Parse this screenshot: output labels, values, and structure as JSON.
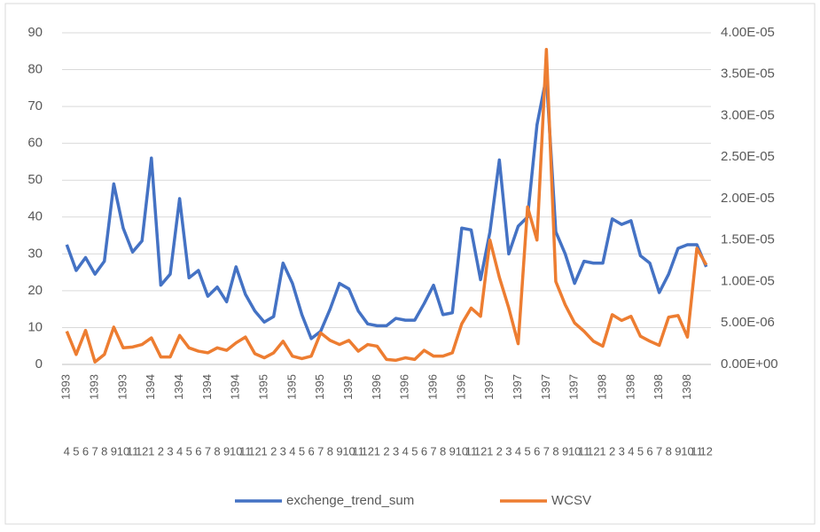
{
  "chart_data": {
    "type": "line",
    "categories": [
      "4",
      "5",
      "6",
      "7",
      "8",
      "9",
      "10",
      "11",
      "12",
      "1",
      "2",
      "3",
      "4",
      "5",
      "6",
      "7",
      "8",
      "9",
      "10",
      "11",
      "12",
      "1",
      "2",
      "3",
      "4",
      "5",
      "6",
      "7",
      "8",
      "9",
      "10",
      "11",
      "12",
      "1",
      "2",
      "3",
      "4",
      "5",
      "6",
      "7",
      "8",
      "9",
      "10",
      "11",
      "12",
      "1",
      "2",
      "3",
      "4",
      "5",
      "6",
      "7",
      "8",
      "9",
      "10",
      "11",
      "12",
      "1",
      "2",
      "3",
      "4",
      "5",
      "6",
      "7",
      "8",
      "9",
      "10",
      "11",
      "12"
    ],
    "category_groups": [
      "1393",
      null,
      null,
      "1393",
      null,
      null,
      "1393",
      null,
      null,
      "1394",
      null,
      null,
      "1394",
      null,
      null,
      "1394",
      null,
      null,
      "1394",
      null,
      null,
      "1395",
      null,
      null,
      "1395",
      null,
      null,
      "1395",
      null,
      null,
      "1395",
      null,
      null,
      "1396",
      null,
      null,
      "1396",
      null,
      null,
      "1396",
      null,
      null,
      "1396",
      null,
      null,
      "1397",
      null,
      null,
      "1397",
      null,
      null,
      "1397",
      null,
      null,
      "1397",
      null,
      null,
      "1398",
      null,
      null,
      "1398",
      null,
      null,
      "1398",
      null,
      null,
      "1398",
      null,
      null
    ],
    "series": [
      {
        "name": "exchenge_trend_sum",
        "color": "#4472c4",
        "values": [
          32.5,
          25.5,
          29,
          24.5,
          28,
          49,
          37,
          30.5,
          33.5,
          56,
          21.5,
          24.5,
          45,
          23.5,
          25.5,
          18.5,
          21,
          17,
          26.5,
          19,
          14.5,
          11.5,
          13,
          27.5,
          22,
          13.5,
          7,
          9,
          15,
          22,
          20.5,
          14.5,
          11,
          10.5,
          10.5,
          12.5,
          12,
          12,
          16.5,
          21.5,
          13.5,
          14,
          37,
          36.5,
          23,
          36,
          55.5,
          30,
          37.5,
          40,
          65,
          78,
          36,
          30,
          22,
          28,
          27.5,
          27.5,
          39.5,
          38,
          39,
          29.5,
          27.5,
          19.5,
          24.5,
          31.5,
          32.5,
          32.5,
          26.5
        ]
      },
      {
        "name": "WCSV",
        "color": "#ed7d31",
        "axis": "y2",
        "values": [
          4e-06,
          1.2e-06,
          4.1e-06,
          3e-07,
          1.2e-06,
          4.5e-06,
          2e-06,
          2.1e-06,
          2.4e-06,
          3.2e-06,
          9e-07,
          9e-07,
          3.5e-06,
          2e-06,
          1.6e-06,
          1.4e-06,
          2e-06,
          1.7e-06,
          2.6e-06,
          3.3e-06,
          1.3e-06,
          8e-07,
          1.4e-06,
          2.8e-06,
          1e-06,
          7e-07,
          1e-06,
          3.8e-06,
          2.9e-06,
          2.4e-06,
          2.9e-06,
          1.6e-06,
          2.4e-06,
          2.2e-06,
          6e-07,
          5e-07,
          8e-07,
          6e-07,
          1.7e-06,
          1e-06,
          1e-06,
          1.4e-06,
          4.9e-06,
          6.8e-06,
          5.8e-06,
          1.5e-05,
          1.05e-05,
          6.8e-06,
          2.5e-06,
          1.9e-05,
          1.5e-05,
          3.8e-05,
          1e-05,
          7.2e-06,
          5e-06,
          4e-06,
          2.8e-06,
          2.2e-06,
          6e-06,
          5.3e-06,
          5.8e-06,
          3.4e-06,
          2.8e-06,
          2.3e-06,
          5.7e-06,
          5.9e-06,
          3.3e-06,
          1.4e-05,
          1.2e-05
        ]
      }
    ],
    "ylim": [
      0,
      90
    ],
    "yticks": [
      0,
      10,
      20,
      30,
      40,
      50,
      60,
      70,
      80,
      90
    ],
    "y2lim": [
      0,
      4e-05
    ],
    "y2ticks": [
      {
        "value": 0,
        "label": "0.00E+00"
      },
      {
        "value": 5e-06,
        "label": "5.00E-06"
      },
      {
        "value": 1e-05,
        "label": "1.00E-05"
      },
      {
        "value": 1.5e-05,
        "label": "1.50E-05"
      },
      {
        "value": 2e-05,
        "label": "2.00E-05"
      },
      {
        "value": 2.5e-05,
        "label": "2.50E-05"
      },
      {
        "value": 3e-05,
        "label": "3.00E-05"
      },
      {
        "value": 3.5e-05,
        "label": "3.50E-05"
      },
      {
        "value": 4e-05,
        "label": "4.00E-05"
      }
    ],
    "grid": true,
    "legend": "bottom"
  }
}
